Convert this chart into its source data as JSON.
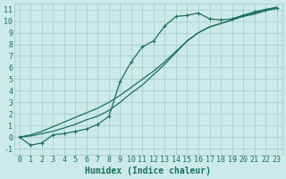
{
  "title": "",
  "xlabel": "Humidex (Indice chaleur)",
  "ylabel": "",
  "bg_color": "#cceaea",
  "grid_color": "#aacece",
  "line_color": "#1a7060",
  "xlim": [
    -0.5,
    23.5
  ],
  "ylim": [
    -1.5,
    11.5
  ],
  "xticks": [
    0,
    1,
    2,
    3,
    4,
    5,
    6,
    7,
    8,
    9,
    10,
    11,
    12,
    13,
    14,
    15,
    16,
    17,
    18,
    19,
    20,
    21,
    22,
    23
  ],
  "yticks": [
    -1,
    0,
    1,
    2,
    3,
    4,
    5,
    6,
    7,
    8,
    9,
    10,
    11
  ],
  "line1_x": [
    0,
    1,
    2,
    3,
    4,
    5,
    6,
    7,
    8,
    9,
    10,
    11,
    12,
    13,
    14,
    15,
    16,
    17,
    18,
    19,
    20,
    21,
    22,
    23
  ],
  "line1_y": [
    0,
    -0.7,
    -0.5,
    0.2,
    0.3,
    0.5,
    0.7,
    1.1,
    1.8,
    4.8,
    6.5,
    7.8,
    8.3,
    9.6,
    10.4,
    10.5,
    10.7,
    10.2,
    10.1,
    10.2,
    10.5,
    10.8,
    11.0,
    11.1
  ],
  "line2_x": [
    0,
    1,
    2,
    3,
    4,
    5,
    6,
    7,
    8,
    9,
    10,
    11,
    12,
    13,
    14,
    15,
    16,
    17,
    18,
    19,
    20,
    21,
    22,
    23
  ],
  "line2_y": [
    0,
    0.1,
    0.3,
    0.5,
    0.8,
    1.1,
    1.5,
    1.8,
    2.3,
    3.0,
    3.8,
    4.5,
    5.4,
    6.3,
    7.3,
    8.3,
    9.0,
    9.5,
    9.8,
    10.1,
    10.4,
    10.6,
    10.9,
    11.1
  ],
  "line3_x": [
    0,
    1,
    2,
    3,
    4,
    5,
    6,
    7,
    8,
    9,
    10,
    11,
    12,
    13,
    14,
    15,
    16,
    17,
    18,
    19,
    20,
    21,
    22,
    23
  ],
  "line3_y": [
    0,
    0.2,
    0.5,
    0.9,
    1.3,
    1.7,
    2.1,
    2.5,
    3.0,
    3.6,
    4.3,
    5.0,
    5.7,
    6.5,
    7.4,
    8.3,
    9.0,
    9.5,
    9.8,
    10.1,
    10.5,
    10.7,
    11.0,
    11.2
  ],
  "marker": "+",
  "marker_size": 3,
  "line_width": 0.9,
  "xlabel_fontsize": 7,
  "tick_fontsize": 6,
  "tick_font": "monospace"
}
